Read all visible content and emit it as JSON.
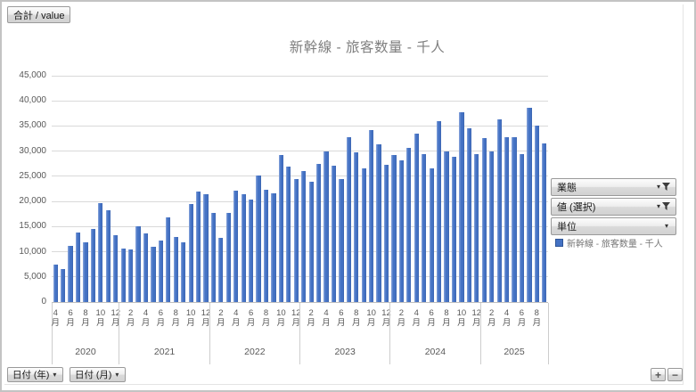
{
  "window": {
    "value_field_button": "合計 / value"
  },
  "field_buttons": [
    {
      "label": "業態",
      "has_filter": true
    },
    {
      "label": "値 (選択)",
      "has_filter": true
    },
    {
      "label": "単位",
      "has_filter": false
    }
  ],
  "legend": {
    "label": "新幹線 - 旅客数量 - 千人",
    "marker_color": "#4472C4"
  },
  "axis_field_buttons": [
    {
      "label": "日付 (年)"
    },
    {
      "label": "日付 (月)"
    }
  ],
  "expand_collapse": {
    "plus": "+",
    "minus": "−"
  },
  "chart_data": {
    "type": "bar",
    "title": "新幹線 - 旅客数量 - 千人",
    "series_name": "新幹線 - 旅客数量 - 千人",
    "xlabel": "",
    "ylabel": "",
    "ylim": [
      0,
      45000
    ],
    "ytick_step": 5000,
    "grid": true,
    "bar_color": "#4472C4",
    "legend_position": "right",
    "month_suffix": "月",
    "labeled_months": [
      2,
      4,
      6,
      8,
      10,
      12
    ],
    "years": [
      {
        "year": "2020",
        "start_month": 4,
        "values": [
          7400,
          6500,
          11200,
          13900,
          11900,
          14500,
          19700,
          18300,
          13300
        ]
      },
      {
        "year": "2021",
        "start_month": 1,
        "values": [
          10700,
          10400,
          15000,
          13600,
          11000,
          12200,
          16900,
          12900,
          11900,
          19500,
          21900,
          21400
        ]
      },
      {
        "year": "2022",
        "start_month": 1,
        "values": [
          17700,
          12800,
          17700,
          22200,
          21400,
          20400,
          25100,
          22400,
          21600,
          29300,
          26900,
          24500
        ]
      },
      {
        "year": "2023",
        "start_month": 1,
        "values": [
          26000,
          24000,
          27500,
          30000,
          27100,
          24400,
          32800,
          29800,
          26500,
          34200,
          31400,
          27200
        ]
      },
      {
        "year": "2024",
        "start_month": 1,
        "values": [
          29300,
          28100,
          30600,
          33400,
          29500,
          26600,
          35900,
          29900,
          28900,
          37700,
          34600,
          29500
        ]
      },
      {
        "year": "2025",
        "start_month": 1,
        "values": [
          32600,
          29900,
          36300,
          32700,
          32800,
          29400,
          38600,
          35000,
          31500
        ]
      }
    ]
  }
}
